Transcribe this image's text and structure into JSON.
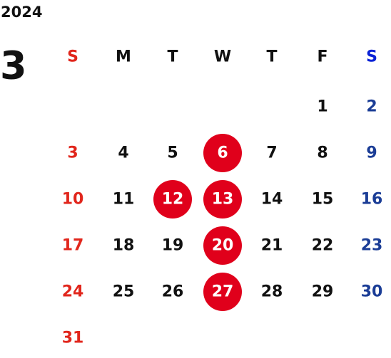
{
  "year": "2024",
  "month": "3",
  "weekdays": [
    "S",
    "M",
    "T",
    "W",
    "T",
    "F",
    "S"
  ],
  "weeks": [
    [
      null,
      null,
      null,
      null,
      null,
      {
        "day": "1"
      },
      {
        "day": "2"
      }
    ],
    [
      {
        "day": "3"
      },
      {
        "day": "4"
      },
      {
        "day": "5"
      },
      {
        "day": "6",
        "highlight": true
      },
      {
        "day": "7"
      },
      {
        "day": "8"
      },
      {
        "day": "9"
      }
    ],
    [
      {
        "day": "10"
      },
      {
        "day": "11"
      },
      {
        "day": "12",
        "highlight": true
      },
      {
        "day": "13",
        "highlight": true
      },
      {
        "day": "14"
      },
      {
        "day": "15"
      },
      {
        "day": "16"
      }
    ],
    [
      {
        "day": "17"
      },
      {
        "day": "18"
      },
      {
        "day": "19"
      },
      {
        "day": "20",
        "highlight": true
      },
      {
        "day": "21"
      },
      {
        "day": "22"
      },
      {
        "day": "23"
      }
    ],
    [
      {
        "day": "24"
      },
      {
        "day": "25"
      },
      {
        "day": "26"
      },
      {
        "day": "27",
        "highlight": true
      },
      {
        "day": "28"
      },
      {
        "day": "29"
      },
      {
        "day": "30"
      }
    ],
    [
      {
        "day": "31"
      },
      null,
      null,
      null,
      null,
      null,
      null
    ]
  ]
}
